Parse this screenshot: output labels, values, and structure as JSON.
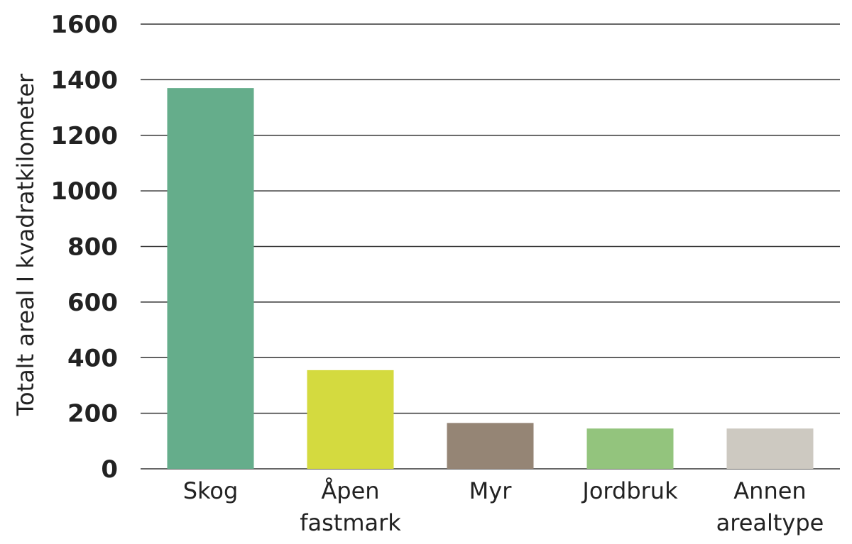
{
  "chart_data": {
    "type": "bar",
    "title": "",
    "xlabel": "",
    "ylabel": "Totalt areal I kvadratkilometer",
    "categories": [
      [
        "Skog"
      ],
      [
        "Åpen",
        "fastmark"
      ],
      [
        "Myr"
      ],
      [
        "Jordbruk"
      ],
      [
        "Annen",
        "arealtype"
      ]
    ],
    "values": [
      1370,
      355,
      165,
      145,
      145
    ],
    "colors": [
      "#65ad8b",
      "#d4da3f",
      "#958575",
      "#93c47d",
      "#cdc9c1"
    ],
    "ylim": [
      0,
      1600
    ],
    "yticks": [
      0,
      200,
      400,
      600,
      800,
      1000,
      1200,
      1400,
      1600
    ],
    "grid": true,
    "legend": "none"
  }
}
